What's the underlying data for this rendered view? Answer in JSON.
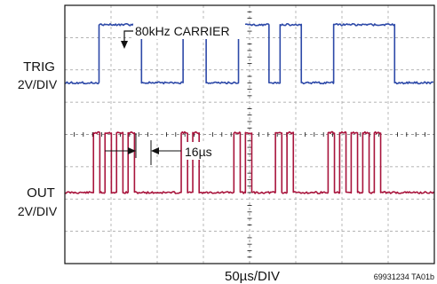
{
  "colors": {
    "trig": "#a8143c",
    "out": "#2d49a8",
    "grid": "#9a9a9a",
    "frame": "#111111"
  },
  "chart_data": {
    "type": "line",
    "xlabel": "50µs/DIV",
    "figure_id": "69931234 TA01b",
    "x_divisions": 8,
    "y_divisions": 8,
    "x_unit": "µs",
    "xlim": [
      0,
      400
    ],
    "annotations": {
      "carrier": "80kHz CARRIER",
      "delay": "16µs"
    },
    "series": [
      {
        "name": "TRIG",
        "scale": "2V/DIV",
        "low_div": 2.2,
        "high_div": 4.05,
        "bursts": [
          [
            31,
            78
          ],
          [
            126,
            149
          ],
          [
            183,
            212
          ],
          [
            228,
            251
          ],
          [
            285,
            351
          ]
        ],
        "carrier_period_us": 12.5,
        "duty": 0.55
      },
      {
        "name": "OUT",
        "scale": "2V/DIV",
        "low_div": 5.6,
        "high_div": 7.4,
        "pulses": [
          [
            37,
            83
          ],
          [
            128,
            153
          ],
          [
            188,
            221
          ],
          [
            233,
            256
          ],
          [
            291,
            357
          ]
        ]
      }
    ]
  }
}
